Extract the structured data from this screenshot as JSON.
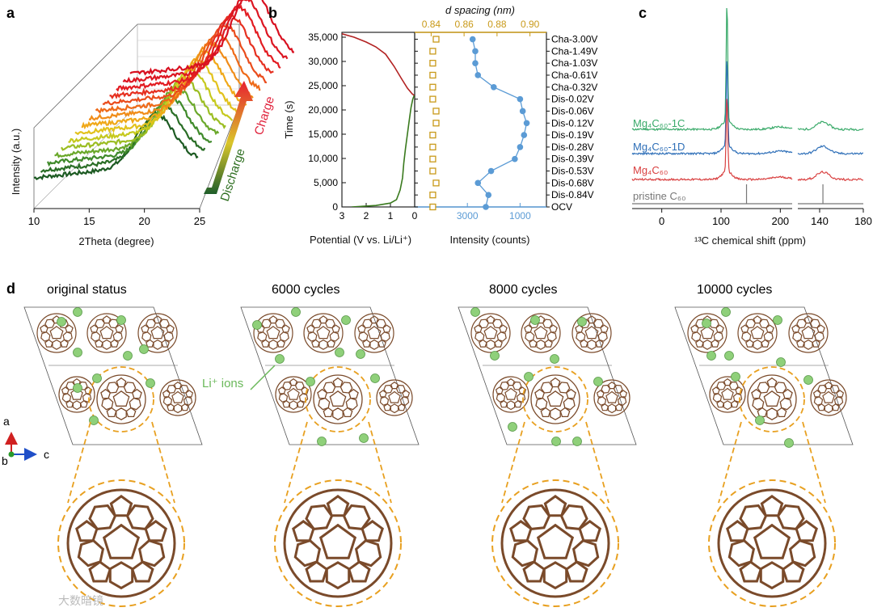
{
  "panel_labels": {
    "a": "a",
    "b": "b",
    "c": "c",
    "d": "d"
  },
  "colors": {
    "spacing": "#c99a1a",
    "intensity": "#5b9bd5",
    "charge": "#b22222",
    "discharge": "#3a7a1e",
    "mg4c60_1c": "#3aaa6a",
    "mg4c60_1d": "#2e6fb8",
    "mg4c60": "#d94040",
    "pristine": "#777777",
    "c60": "#7a4a2a",
    "li": "#8fd07a",
    "circle": "#e8a020"
  },
  "panel_a": {
    "ylabel": "Intensity (a.u.)",
    "xlabel": "2Theta (degree)",
    "xticks": [
      "10",
      "15",
      "20",
      "25"
    ],
    "charge_label": "Charge",
    "discharge_label": "Discharge"
  },
  "chart_data": [
    {
      "type": "line",
      "panel": "b-left",
      "title": "",
      "xlabel": "Potential (V vs. Li/Li⁺)",
      "ylabel": "Time (s)",
      "xlim": [
        3,
        0
      ],
      "ylim": [
        0,
        36000
      ],
      "xticks": [
        "3",
        "2",
        "1",
        "0"
      ],
      "yticks": [
        "0",
        "5,000",
        "10,000",
        "15,000",
        "20,000",
        "25,000",
        "30,000",
        "35,000"
      ],
      "series": [
        {
          "name": "Discharge",
          "x": [
            2.6,
            1.6,
            1.0,
            0.75,
            0.6,
            0.5,
            0.45,
            0.38,
            0.3,
            0.22,
            0.15,
            0.08,
            0.02
          ],
          "y": [
            0,
            300,
            800,
            1500,
            3500,
            6000,
            9000,
            12000,
            15000,
            18000,
            20500,
            22200,
            23000
          ]
        },
        {
          "name": "Charge",
          "x": [
            0.02,
            0.1,
            0.3,
            0.55,
            0.85,
            1.2,
            1.6,
            2.0,
            2.5,
            3.0
          ],
          "y": [
            23000,
            23300,
            24500,
            26500,
            29000,
            31500,
            33000,
            34000,
            35000,
            35700
          ]
        }
      ]
    },
    {
      "type": "scatter",
      "panel": "b-right",
      "xlabel_top": "d spacing (nm)",
      "xlabel_bottom": "Intensity (counts)",
      "xticks_top": [
        "0.84",
        "0.86",
        "0.88",
        "0.90"
      ],
      "xticks_bottom": [
        "3000",
        "1000"
      ],
      "states": [
        "OCV",
        "Dis-0.84V",
        "Dis-0.68V",
        "Dis-0.53V",
        "Dis-0.39V",
        "Dis-0.28V",
        "Dis-0.19V",
        "Dis-0.12V",
        "Dis-0.06V",
        "Dis-0.02V",
        "Cha-0.32V",
        "Cha-0.61V",
        "Cha-1.03V",
        "Cha-1.49V",
        "Cha-3.00V"
      ],
      "series": [
        {
          "name": "d spacing",
          "axis": "top",
          "xlim": [
            0.83,
            0.91
          ],
          "values": [
            0.841,
            0.841,
            0.843,
            0.841,
            0.841,
            0.841,
            0.841,
            0.843,
            0.843,
            0.841,
            0.841,
            0.841,
            0.841,
            0.841,
            0.843
          ]
        },
        {
          "name": "Intensity",
          "axis": "bottom",
          "xlim": [
            5000,
            0
          ],
          "values": [
            2300,
            2200,
            2600,
            2100,
            1200,
            1000,
            850,
            750,
            900,
            1000,
            2000,
            2600,
            2700,
            2700,
            2800
          ]
        }
      ]
    },
    {
      "type": "line",
      "panel": "c",
      "title": "",
      "xlabel": "¹³C chemical shift (ppm)",
      "xticks_left": [
        "0",
        "100",
        "200"
      ],
      "xticks_right": [
        "140",
        "180"
      ],
      "series": [
        {
          "name": "Mg₄C₆₀-1C"
        },
        {
          "name": "Mg₄C₆₀-1D"
        },
        {
          "name": "Mg₄C₆₀"
        },
        {
          "name": "pristine C₆₀"
        }
      ]
    }
  ],
  "panel_d": {
    "titles": [
      "original status",
      "6000 cycles",
      "8000 cycles",
      "10000 cycles"
    ],
    "li_label": "Li⁺ ions",
    "axes": {
      "a": "a",
      "b": "b",
      "c": "c"
    }
  },
  "watermark": "大数暗镜"
}
